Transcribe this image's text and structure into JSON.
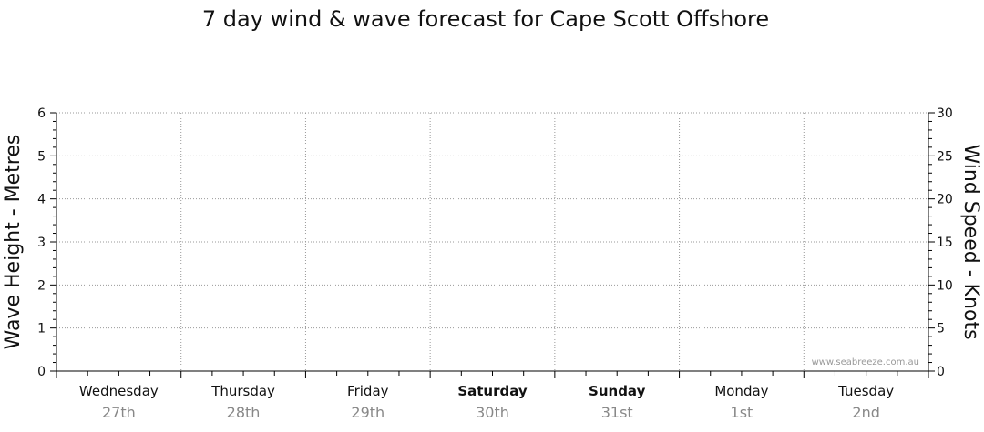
{
  "chart_data": {
    "type": "line",
    "title": "7 day wind & wave forecast for Cape Scott Offshore",
    "ylabel_left": "Wave Height - Metres",
    "ylabel_right": "Wind Speed - Knots",
    "ylim_left": [
      0,
      6
    ],
    "ylim_right": [
      0,
      30
    ],
    "yticks_left": [
      "0",
      "1",
      "2",
      "3",
      "4",
      "5",
      "6"
    ],
    "yticks_right": [
      "0",
      "5",
      "10",
      "15",
      "20",
      "25",
      "30"
    ],
    "grid": true,
    "days": [
      {
        "name": "Wednesday",
        "date": "27th",
        "bold": false
      },
      {
        "name": "Thursday",
        "date": "28th",
        "bold": false
      },
      {
        "name": "Friday",
        "date": "29th",
        "bold": false
      },
      {
        "name": "Saturday",
        "date": "30th",
        "bold": true
      },
      {
        "name": "Sunday",
        "date": "31st",
        "bold": true
      },
      {
        "name": "Monday",
        "date": "1st",
        "bold": false
      },
      {
        "name": "Tuesday",
        "date": "2nd",
        "bold": false
      }
    ],
    "series": [],
    "watermark": "www.seabreeze.com.au"
  },
  "colors": {
    "axis": "#000000",
    "grid": "#999999",
    "date_text": "#888888"
  }
}
